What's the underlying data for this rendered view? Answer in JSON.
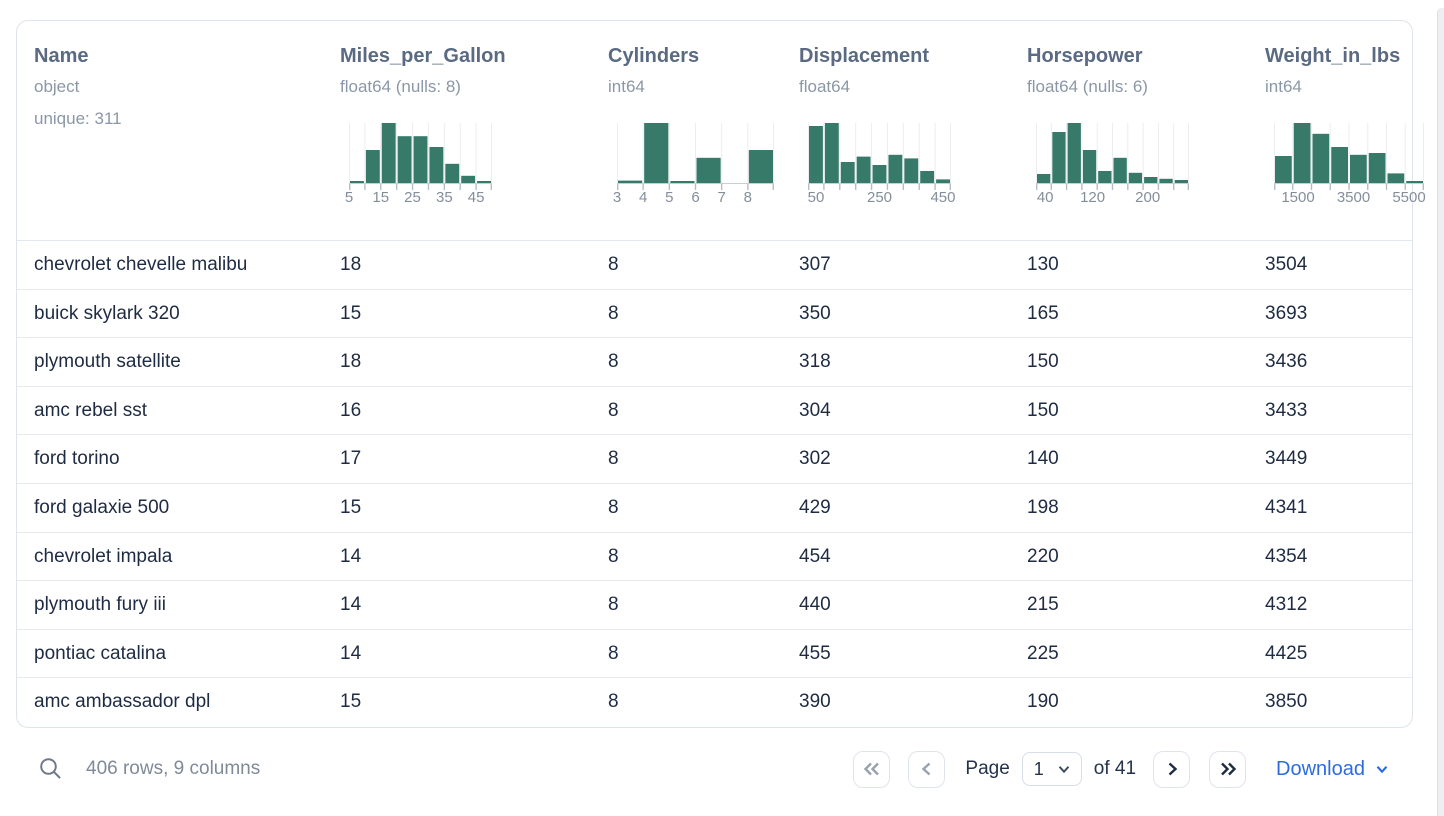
{
  "table": {
    "columns": [
      {
        "name": "Name",
        "type": "object",
        "extra": "unique: 311",
        "histogram": null
      },
      {
        "name": "Miles_per_Gallon",
        "type": "float64 (nulls: 8)",
        "extra": null,
        "histogram": {
          "width": 143,
          "bars": [
            0.03,
            0.55,
            1.0,
            0.78,
            0.78,
            0.6,
            0.32,
            0.12,
            0.03
          ],
          "tick_labels": [
            {
              "text": "5",
              "frac": 0.0
            },
            {
              "text": "15",
              "frac": 0.222
            },
            {
              "text": "25",
              "frac": 0.444
            },
            {
              "text": "35",
              "frac": 0.667
            },
            {
              "text": "45",
              "frac": 0.889
            }
          ]
        }
      },
      {
        "name": "Cylinders",
        "type": "int64",
        "extra": null,
        "histogram": {
          "width": 157,
          "bars": [
            0.04,
            1.0,
            0.03,
            0.42,
            0,
            0.55
          ],
          "tick_labels": [
            {
              "text": "3",
              "frac": 0.0
            },
            {
              "text": "4",
              "frac": 0.167
            },
            {
              "text": "5",
              "frac": 0.333
            },
            {
              "text": "6",
              "frac": 0.5
            },
            {
              "text": "7",
              "frac": 0.667
            },
            {
              "text": "8",
              "frac": 0.833
            }
          ]
        }
      },
      {
        "name": "Displacement",
        "type": "float64",
        "extra": null,
        "histogram": {
          "width": 143,
          "bars": [
            0.95,
            1.0,
            0.35,
            0.44,
            0.3,
            0.47,
            0.41,
            0.2,
            0.06
          ],
          "tick_labels": [
            {
              "text": "50",
              "frac": 0.056
            },
            {
              "text": "250",
              "frac": 0.5
            },
            {
              "text": "450",
              "frac": 0.944
            }
          ]
        }
      },
      {
        "name": "Horsepower",
        "type": "float64 (nulls: 6)",
        "extra": null,
        "histogram": {
          "width": 153,
          "bars": [
            0.15,
            0.85,
            1.0,
            0.55,
            0.2,
            0.42,
            0.17,
            0.1,
            0.07,
            0.05
          ],
          "tick_labels": [
            {
              "text": "40",
              "frac": 0.06
            },
            {
              "text": "120",
              "frac": 0.37
            },
            {
              "text": "200",
              "frac": 0.73
            }
          ]
        }
      },
      {
        "name": "Weight_in_lbs",
        "type": "int64",
        "extra": null,
        "histogram": {
          "width": 150,
          "bars": [
            0.45,
            1.0,
            0.82,
            0.6,
            0.47,
            0.5,
            0.16,
            0.02
          ],
          "tick_labels": [
            {
              "text": "1500",
              "frac": 0.16
            },
            {
              "text": "3500",
              "frac": 0.53
            },
            {
              "text": "5500",
              "frac": 0.9
            }
          ]
        }
      }
    ],
    "rows": [
      [
        "chevrolet chevelle malibu",
        "18",
        "8",
        "307",
        "130",
        "3504"
      ],
      [
        "buick skylark 320",
        "15",
        "8",
        "350",
        "165",
        "3693"
      ],
      [
        "plymouth satellite",
        "18",
        "8",
        "318",
        "150",
        "3436"
      ],
      [
        "amc rebel sst",
        "16",
        "8",
        "304",
        "150",
        "3433"
      ],
      [
        "ford torino",
        "17",
        "8",
        "302",
        "140",
        "3449"
      ],
      [
        "ford galaxie 500",
        "15",
        "8",
        "429",
        "198",
        "4341"
      ],
      [
        "chevrolet impala",
        "14",
        "8",
        "454",
        "220",
        "4354"
      ],
      [
        "plymouth fury iii",
        "14",
        "8",
        "440",
        "215",
        "4312"
      ],
      [
        "pontiac catalina",
        "14",
        "8",
        "455",
        "225",
        "4425"
      ],
      [
        "amc ambassador dpl",
        "15",
        "8",
        "390",
        "190",
        "3850"
      ]
    ]
  },
  "footer": {
    "summary": "406 rows, 9 columns",
    "page_label": "Page",
    "page_value": "1",
    "of_label": "of 41",
    "download_label": "Download"
  },
  "colors": {
    "bar_green": "#377a69",
    "header_text": "#5a6a82",
    "muted_text": "#8b97a6",
    "row_text": "#1e2b42",
    "download_blue": "#2d6ce0"
  },
  "chart_data": [
    {
      "type": "bar",
      "title": "Miles_per_Gallon histogram",
      "bin_edge_labels": [
        "5",
        "15",
        "25",
        "35",
        "45"
      ],
      "relative_heights": [
        0.03,
        0.55,
        1.0,
        0.78,
        0.78,
        0.6,
        0.32,
        0.12,
        0.03
      ]
    },
    {
      "type": "bar",
      "title": "Cylinders histogram",
      "bin_edge_labels": [
        "3",
        "4",
        "5",
        "6",
        "7",
        "8"
      ],
      "relative_heights": [
        0.04,
        1.0,
        0.03,
        0.42,
        0,
        0.55
      ]
    },
    {
      "type": "bar",
      "title": "Displacement histogram",
      "bin_edge_labels": [
        "50",
        "250",
        "450"
      ],
      "relative_heights": [
        0.95,
        1.0,
        0.35,
        0.44,
        0.3,
        0.47,
        0.41,
        0.2,
        0.06
      ]
    },
    {
      "type": "bar",
      "title": "Horsepower histogram",
      "bin_edge_labels": [
        "40",
        "120",
        "200"
      ],
      "relative_heights": [
        0.15,
        0.85,
        1.0,
        0.55,
        0.2,
        0.42,
        0.17,
        0.1,
        0.07,
        0.05
      ]
    },
    {
      "type": "bar",
      "title": "Weight_in_lbs histogram",
      "bin_edge_labels": [
        "1500",
        "3500",
        "5500"
      ],
      "relative_heights": [
        0.45,
        1.0,
        0.82,
        0.6,
        0.47,
        0.5,
        0.16,
        0.02
      ]
    }
  ]
}
